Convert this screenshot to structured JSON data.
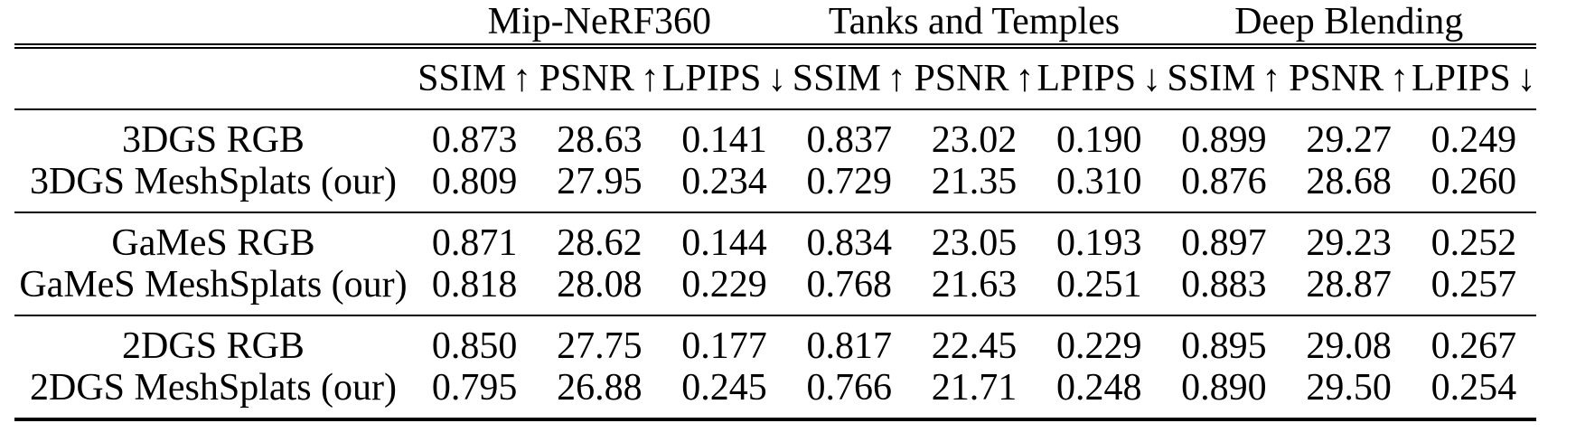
{
  "page": {
    "background": "#ffffff",
    "text_color": "#000000"
  },
  "table": {
    "corner_label": "",
    "groups": [
      {
        "label": "Mip-NeRF360"
      },
      {
        "label": "Tanks and Temples"
      },
      {
        "label": "Deep Blending"
      }
    ],
    "metrics": [
      {
        "name": "SSIM",
        "arrow": "↑",
        "direction": "higher-better"
      },
      {
        "name": "PSNR",
        "arrow": "↑",
        "direction": "higher-better"
      },
      {
        "name": "LPIPS",
        "arrow": "↓",
        "direction": "lower-better"
      }
    ],
    "sections": [
      {
        "rows": [
          {
            "label": "3DGS RGB",
            "values": [
              "0.873",
              "28.63",
              "0.141",
              "0.837",
              "23.02",
              "0.190",
              "0.899",
              "29.27",
              "0.249"
            ]
          },
          {
            "label": "3DGS MeshSplats (our)",
            "values": [
              "0.809",
              "27.95",
              "0.234",
              "0.729",
              "21.35",
              "0.310",
              "0.876",
              "28.68",
              "0.260"
            ]
          }
        ]
      },
      {
        "rows": [
          {
            "label": "GaMeS RGB",
            "values": [
              "0.871",
              "28.62",
              "0.144",
              "0.834",
              "23.05",
              "0.193",
              "0.897",
              "29.23",
              "0.252"
            ]
          },
          {
            "label": "GaMeS MeshSplats (our)",
            "values": [
              "0.818",
              "28.08",
              "0.229",
              "0.768",
              "21.63",
              "0.251",
              "0.883",
              "28.87",
              "0.257"
            ]
          }
        ]
      },
      {
        "rows": [
          {
            "label": "2DGS RGB",
            "values": [
              "0.850",
              "27.75",
              "0.177",
              "0.817",
              "22.45",
              "0.229",
              "0.895",
              "29.08",
              "0.267"
            ]
          },
          {
            "label": "2DGS MeshSplats (our)",
            "values": [
              "0.795",
              "26.88",
              "0.245",
              "0.766",
              "21.71",
              "0.248",
              "0.890",
              "29.50",
              "0.254"
            ]
          }
        ]
      }
    ]
  },
  "chart_data": {
    "type": "table",
    "column_groups": [
      "Mip-NeRF360",
      "Tanks and Temples",
      "Deep Blending"
    ],
    "columns": [
      "Method",
      "SSIM ↑",
      "PSNR ↑",
      "LPIPS ↓",
      "SSIM ↑",
      "PSNR ↑",
      "LPIPS ↓",
      "SSIM ↑",
      "PSNR ↑",
      "LPIPS ↓"
    ],
    "rows": [
      [
        "3DGS RGB",
        0.873,
        28.63,
        0.141,
        0.837,
        23.02,
        0.19,
        0.899,
        29.27,
        0.249
      ],
      [
        "3DGS MeshSplats (our)",
        0.809,
        27.95,
        0.234,
        0.729,
        21.35,
        0.31,
        0.876,
        28.68,
        0.26
      ],
      [
        "GaMeS RGB",
        0.871,
        28.62,
        0.144,
        0.834,
        23.05,
        0.193,
        0.897,
        29.23,
        0.252
      ],
      [
        "GaMeS MeshSplats (our)",
        0.818,
        28.08,
        0.229,
        0.768,
        21.63,
        0.251,
        0.883,
        28.87,
        0.257
      ],
      [
        "2DGS RGB",
        0.85,
        27.75,
        0.177,
        0.817,
        22.45,
        0.229,
        0.895,
        29.08,
        0.267
      ],
      [
        "2DGS MeshSplats (our)",
        0.795,
        26.88,
        0.245,
        0.766,
        21.71,
        0.248,
        0.89,
        29.5,
        0.254
      ]
    ]
  }
}
